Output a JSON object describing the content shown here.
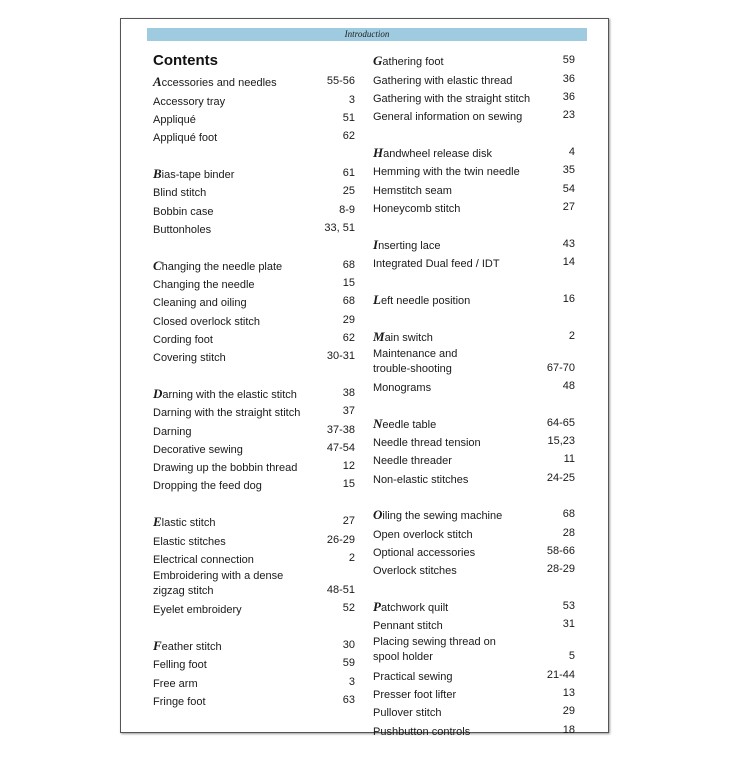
{
  "header": {
    "section": "Introduction"
  },
  "title": "Contents",
  "left_groups": [
    [
      {
        "label": "Accessories and needles",
        "page": "55-56"
      },
      {
        "label": "Accessory tray",
        "page": "3"
      },
      {
        "label": "Appliqué",
        "page": "51"
      },
      {
        "label": "Appliqué foot",
        "page": "62"
      }
    ],
    [
      {
        "label": "Bias-tape binder",
        "page": "61"
      },
      {
        "label": "Blind stitch",
        "page": "25"
      },
      {
        "label": "Bobbin case",
        "page": "8-9"
      },
      {
        "label": "Buttonholes",
        "page": "33, 51"
      }
    ],
    [
      {
        "label": "Changing the needle plate",
        "page": "68"
      },
      {
        "label": "Changing the needle",
        "page": "15"
      },
      {
        "label": "Cleaning and oiling",
        "page": "68"
      },
      {
        "label": "Closed overlock stitch",
        "page": "29"
      },
      {
        "label": "Cording foot",
        "page": "62"
      },
      {
        "label": "Covering stitch",
        "page": "30-31"
      }
    ],
    [
      {
        "label": "Darning with the elastic stitch",
        "page": "38"
      },
      {
        "label": "Darning with the straight stitch",
        "page": "37"
      },
      {
        "label": "Darning",
        "page": "37-38"
      },
      {
        "label": "Decorative sewing",
        "page": "47-54"
      },
      {
        "label": "Drawing up the bobbin thread",
        "page": "12"
      },
      {
        "label": "Dropping the feed dog",
        "page": "15"
      }
    ],
    [
      {
        "label": "Elastic stitch",
        "page": "27"
      },
      {
        "label": "Elastic stitches",
        "page": "26-29"
      },
      {
        "label": "Electrical connection",
        "page": "2"
      },
      {
        "label": "Embroidering with a dense\n zigzag stitch",
        "page": "48-51"
      },
      {
        "label": "Eyelet embroidery",
        "page": "52"
      }
    ],
    [
      {
        "label": "Feather stitch",
        "page": "30"
      },
      {
        "label": "Felling foot",
        "page": "59"
      },
      {
        "label": "Free arm",
        "page": "3"
      },
      {
        "label": "Fringe foot",
        "page": "63"
      }
    ]
  ],
  "right_groups": [
    [
      {
        "label": "Gathering foot",
        "page": "59"
      },
      {
        "label": "Gathering with elastic thread",
        "page": "36"
      },
      {
        "label": "Gathering with the straight stitch",
        "page": "36"
      },
      {
        "label": "General information on sewing",
        "page": "23"
      }
    ],
    [
      {
        "label": "Handwheel release disk",
        "page": "4"
      },
      {
        "label": "Hemming with the twin needle",
        "page": "35"
      },
      {
        "label": "Hemstitch seam",
        "page": "54"
      },
      {
        "label": "Honeycomb stitch",
        "page": "27"
      }
    ],
    [
      {
        "label": "Inserting lace",
        "page": "43"
      },
      {
        "label": "Integrated Dual feed / IDT",
        "page": "14"
      }
    ],
    [
      {
        "label": "Left needle position",
        "page": "16"
      }
    ],
    [
      {
        "label": "Main switch",
        "page": "2"
      },
      {
        "label": "Maintenance and\ntrouble-shooting",
        "page": "67-70"
      },
      {
        "label": "Monograms",
        "page": "48"
      }
    ],
    [
      {
        "label": "Needle table",
        "page": "64-65"
      },
      {
        "label": "Needle thread tension",
        "page": "15,23"
      },
      {
        "label": "Needle threader",
        "page": "11"
      },
      {
        "label": "Non-elastic stitches",
        "page": "24-25"
      }
    ],
    [
      {
        "label": "Oiling the sewing machine",
        "page": "68"
      },
      {
        "label": "Open overlock stitch",
        "page": "28"
      },
      {
        "label": "Optional accessories",
        "page": "58-66"
      },
      {
        "label": "Overlock stitches",
        "page": "28-29"
      }
    ],
    [
      {
        "label": "Patchwork quilt",
        "page": "53"
      },
      {
        "label": "Pennant stitch",
        "page": "31"
      },
      {
        "label": "Placing sewing thread on\n spool holder",
        "page": "5"
      },
      {
        "label": "Practical sewing",
        "page": "21-44"
      },
      {
        "label": "Presser foot lifter",
        "page": "13"
      },
      {
        "label": "Pullover stitch",
        "page": "29"
      },
      {
        "label": "Pushbutton controls",
        "page": "18"
      }
    ]
  ],
  "colors": {
    "header_bar": "#9ecbe0",
    "text": "#1a1a1a"
  }
}
